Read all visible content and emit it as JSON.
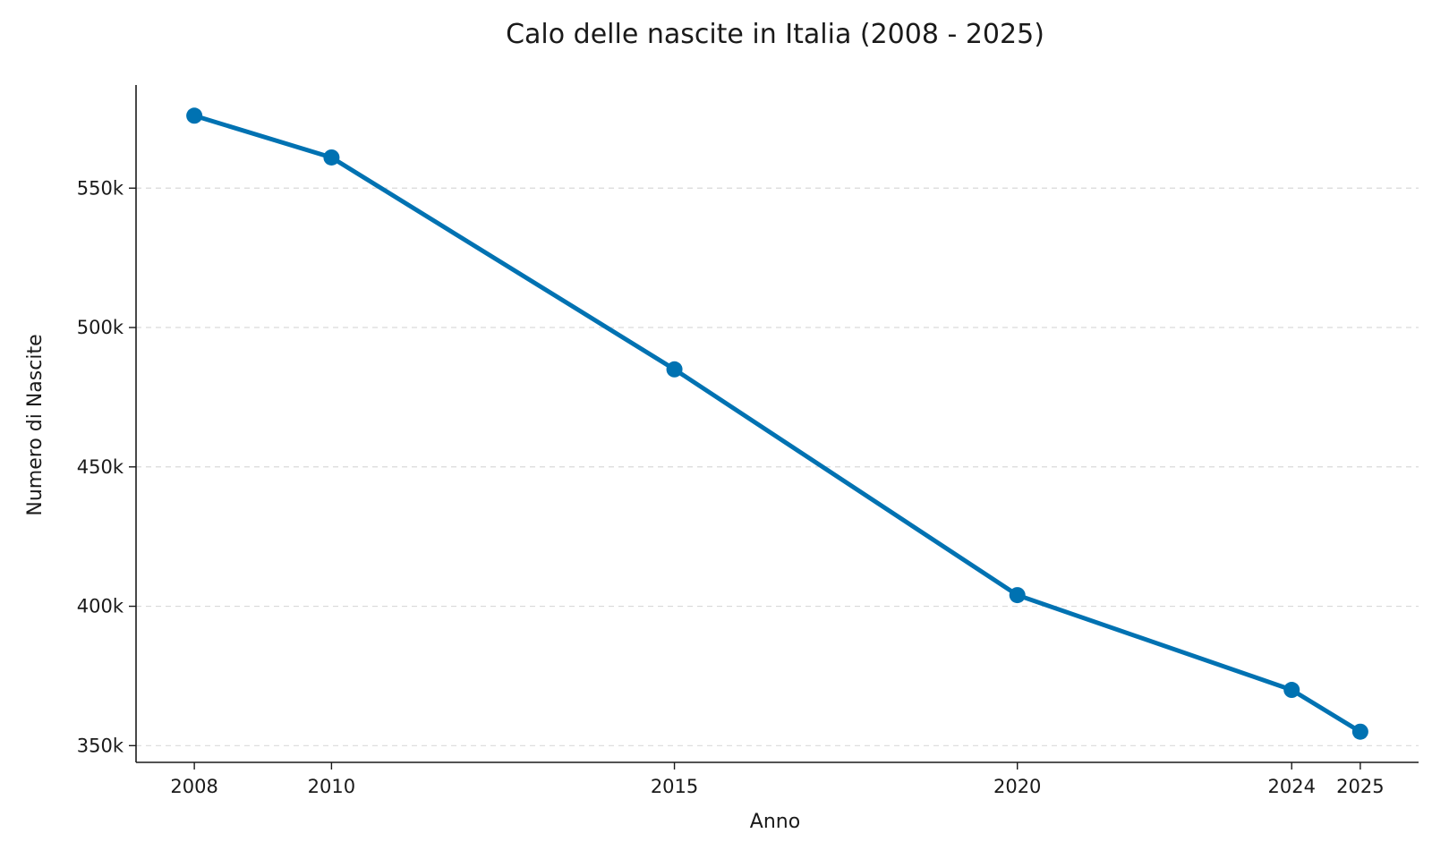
{
  "chart_data": {
    "type": "line",
    "title": "Calo delle nascite in Italia (2008 - 2025)",
    "xlabel": "Anno",
    "ylabel": "Numero di Nascite",
    "x": [
      2008,
      2010,
      2015,
      2020,
      2024,
      2025
    ],
    "series": [
      {
        "name": "Nascite",
        "values": [
          576000,
          561000,
          485000,
          404000,
          370000,
          355000
        ],
        "color": "#0072b2"
      }
    ],
    "x_ticks": [
      2008,
      2010,
      2015,
      2020,
      2024,
      2025
    ],
    "x_tick_labels": [
      "2008",
      "2010",
      "2015",
      "2020",
      "2024",
      "2025"
    ],
    "y_ticks": [
      350000,
      400000,
      450000,
      500000,
      550000
    ],
    "y_tick_labels": [
      "350k",
      "400k",
      "450k",
      "500k",
      "550k"
    ],
    "xlim": [
      2007.15,
      2025.85
    ],
    "ylim": [
      344000,
      587000
    ],
    "grid": "y-dashed",
    "colors": {
      "line": "#0072b2",
      "grid": "#d9d9d9",
      "axis": "#1a1a1a",
      "text": "#1a1a1a"
    }
  }
}
